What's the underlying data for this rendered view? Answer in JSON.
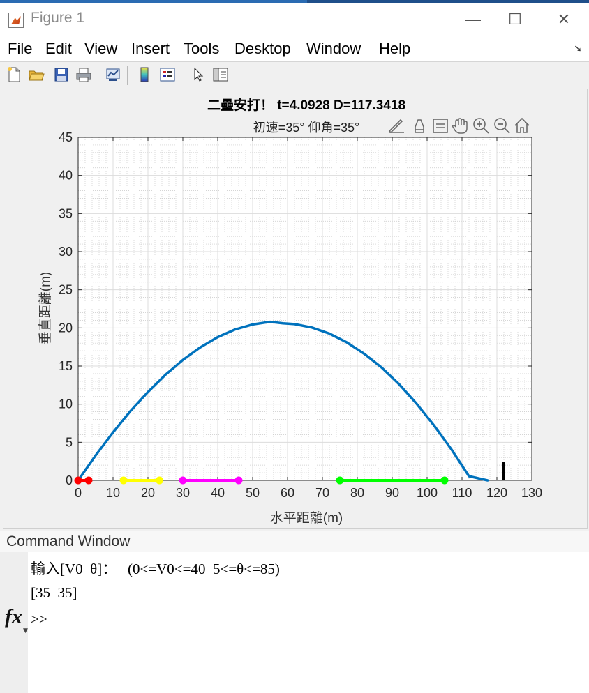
{
  "window": {
    "title": "Figure 1"
  },
  "controls": {
    "minimize": "—",
    "maximize": "☐",
    "close": "✕"
  },
  "menu": [
    "File",
    "Edit",
    "View",
    "Insert",
    "Tools",
    "Desktop",
    "Window",
    "Help"
  ],
  "toolbar": [
    "new-file-icon",
    "open-folder-icon",
    "save-icon",
    "print-icon",
    "link-plot-icon",
    "colorbar-icon",
    "legend-icon",
    "select-arrow-icon",
    "property-inspector-icon"
  ],
  "axes_toolbar": [
    "brush-icon",
    "data-tips-icon",
    "link-icon",
    "pan-icon",
    "zoom-in-icon",
    "zoom-out-icon",
    "home-icon"
  ],
  "chart_data": {
    "type": "line",
    "title": "二壘安打！ t=4.0928  D=117.3418",
    "subtitle": "初速=35°  仰角=35°",
    "xlabel": "水平距離(m)",
    "ylabel": "垂直距離(m)",
    "xlim": [
      0,
      130
    ],
    "ylim": [
      0,
      45
    ],
    "xticks": [
      0,
      10,
      20,
      30,
      40,
      50,
      60,
      70,
      80,
      90,
      100,
      110,
      120,
      130
    ],
    "yticks": [
      0,
      5,
      10,
      15,
      20,
      25,
      30,
      35,
      40,
      45
    ],
    "grid": true,
    "minor_grid": true,
    "series": [
      {
        "kind": "trajectory",
        "color": "#0072bd",
        "x": [
          0,
          5,
          10,
          15,
          20,
          25,
          30,
          35,
          40,
          45,
          50,
          55,
          58.7,
          62,
          67,
          72,
          77,
          82,
          87,
          92,
          97,
          102,
          107,
          112,
          117.34
        ],
        "y": [
          0,
          3.27,
          6.3,
          9.1,
          11.6,
          13.85,
          15.8,
          17.45,
          18.8,
          19.8,
          20.45,
          20.8,
          20.6,
          20.5,
          20.05,
          19.25,
          18.1,
          16.6,
          14.8,
          12.6,
          10.05,
          7.2,
          4.05,
          0.55,
          0
        ]
      },
      {
        "kind": "segment",
        "color": "#ff0000",
        "x": [
          0,
          3
        ]
      },
      {
        "kind": "segment",
        "color": "#ffff00",
        "x": [
          13,
          23.3
        ]
      },
      {
        "kind": "segment",
        "color": "#ff00ff",
        "x": [
          30,
          46
        ]
      },
      {
        "kind": "segment",
        "color": "#00ff00",
        "x": [
          75,
          105
        ]
      },
      {
        "kind": "post",
        "color": "#000000",
        "x": 122,
        "y": [
          0,
          2.4
        ]
      }
    ]
  },
  "command_window": {
    "title": "Command Window",
    "lines": [
      "輸入[V0  θ]：   (0<=V0<=40  5<=θ<=85)",
      "[35  35]"
    ],
    "prompt": ">>",
    "fx_label": "fx"
  }
}
